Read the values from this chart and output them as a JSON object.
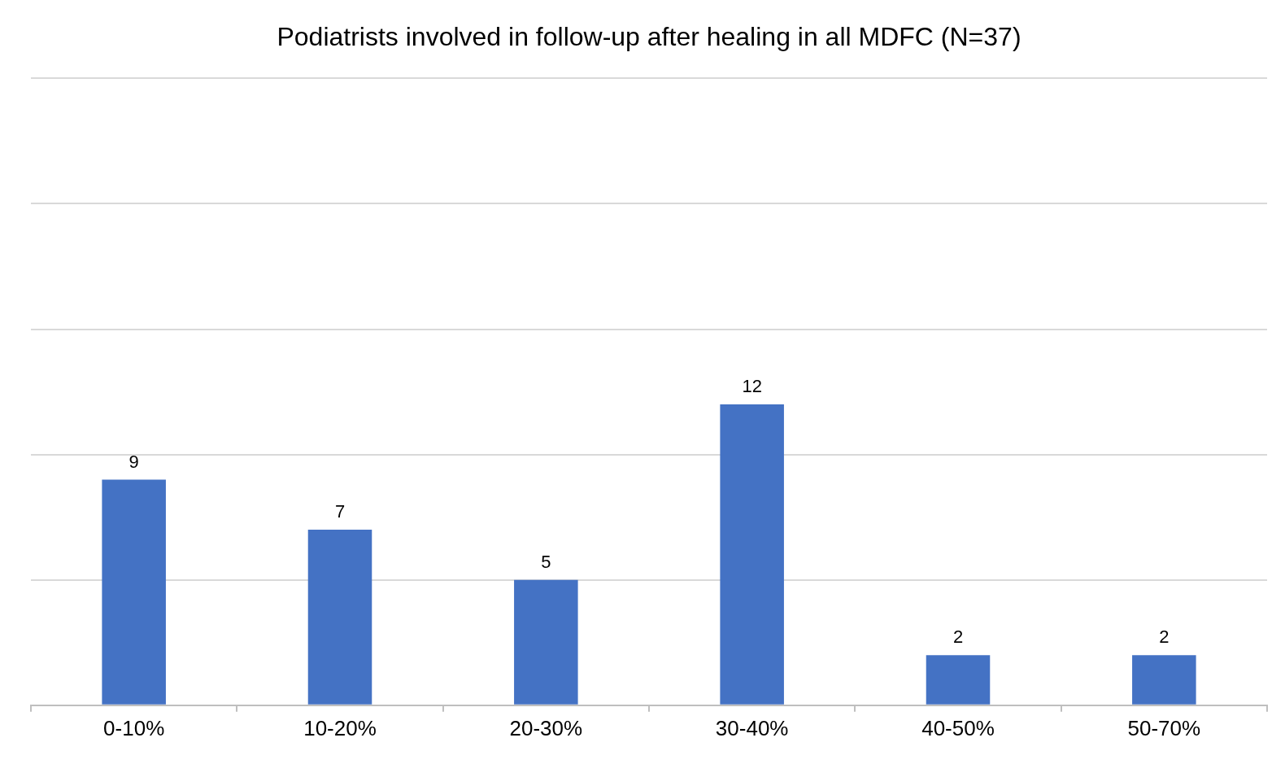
{
  "chart_data": {
    "type": "bar",
    "title": "Podiatrists involved in follow-up after healing in all MDFC (N=37)",
    "categories": [
      "0-10%",
      "10-20%",
      "20-30%",
      "30-40%",
      "40-50%",
      "50-70%"
    ],
    "values": [
      9,
      7,
      5,
      12,
      2,
      2
    ],
    "color": "#4472c4",
    "ylim": [
      0,
      25
    ],
    "yticks": [
      {
        "value": 0,
        "label": null
      },
      {
        "value": 5,
        "label": null
      },
      {
        "value": 10,
        "label": null
      },
      {
        "value": 15,
        "label": null
      },
      {
        "value": 20,
        "label": null
      },
      {
        "value": 25,
        "label": null
      }
    ],
    "tick_labels": "x",
    "grid": "y",
    "data_labels": true,
    "legend": false
  }
}
